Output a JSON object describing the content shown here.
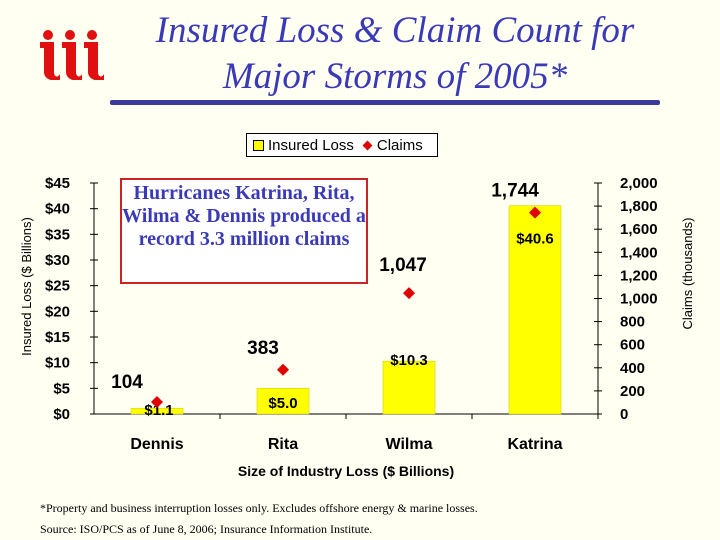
{
  "title": "Insured Loss & Claim Count for Major Storms of 2005*",
  "callout": "Hurricanes Katrina, Rita, Wilma & Dennis produced a record 3.3 million claims",
  "footnote": "*Property and business interruption losses only.  Excludes offshore energy & marine losses.",
  "source": "Source: ISO/PCS as of June 8, 2006; Insurance Information Institute.",
  "chart_data": {
    "type": "bar",
    "categories": [
      "Dennis",
      "Rita",
      "Wilma",
      "Katrina"
    ],
    "xlabel": "Size of Industry Loss ($ Billions)",
    "ylabel": "Insured Loss ($ Billions)",
    "y2label": "Claims (thousands)",
    "ylim": [
      0,
      45
    ],
    "y2lim": [
      0,
      2000
    ],
    "yticks": [
      "$0",
      "$5",
      "$10",
      "$15",
      "$20",
      "$25",
      "$30",
      "$35",
      "$40",
      "$45"
    ],
    "y2ticks": [
      "0",
      "200",
      "400",
      "600",
      "800",
      "1,000",
      "1,200",
      "1,400",
      "1,600",
      "1,800",
      "2,000"
    ],
    "legend_position": "top-center",
    "series": [
      {
        "name": "Insured Loss",
        "kind": "bar",
        "color": "#ffff00",
        "axis": "left",
        "values": [
          1.1,
          5.0,
          10.3,
          40.6
        ],
        "labels": [
          "$1.1",
          "$5.0",
          "$10.3",
          "$40.6"
        ]
      },
      {
        "name": "Claims",
        "kind": "marker",
        "color": "#e00000",
        "axis": "right",
        "values": [
          104,
          383,
          1047,
          1744
        ],
        "labels": [
          "104",
          "383",
          "1,047",
          "1,744"
        ]
      }
    ]
  }
}
